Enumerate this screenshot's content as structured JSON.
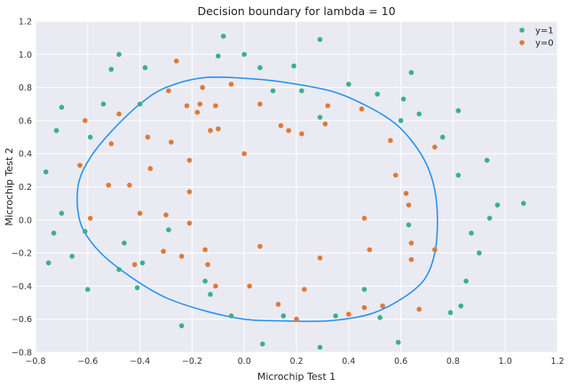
{
  "chart_data": {
    "type": "scatter",
    "title": "Decision boundary for lambda = 10",
    "xlabel": "Microchip Test 1",
    "ylabel": "Microchip Test 2",
    "xlim": [
      -0.8,
      1.2
    ],
    "ylim": [
      -0.8,
      1.2
    ],
    "xticks": [
      -0.8,
      -0.6,
      -0.4,
      -0.2,
      0.0,
      0.2,
      0.4,
      0.6,
      0.8,
      1.0,
      1.2
    ],
    "yticks": [
      -0.8,
      -0.6,
      -0.4,
      -0.2,
      0.0,
      0.2,
      0.4,
      0.6,
      0.8,
      1.0,
      1.2
    ],
    "xtick_labels": [
      "−0.8",
      "−0.6",
      "−0.4",
      "−0.2",
      "0.0",
      "0.2",
      "0.4",
      "0.6",
      "0.8",
      "1.0",
      "1.2"
    ],
    "ytick_labels": [
      "−0.8",
      "−0.6",
      "−0.4",
      "−0.2",
      "0.0",
      "0.2",
      "0.4",
      "0.6",
      "0.8",
      "1.0",
      "1.2"
    ],
    "grid": true,
    "legend_position": "top-right",
    "background_color": "#EAEAF2",
    "boundary_color": "#1E90F0",
    "series": [
      {
        "name": "y=1",
        "color": "#3BAF8E",
        "points": [
          [
            -0.76,
            0.29
          ],
          [
            -0.75,
            -0.26
          ],
          [
            -0.73,
            -0.08
          ],
          [
            -0.72,
            0.54
          ],
          [
            -0.7,
            0.68
          ],
          [
            -0.7,
            0.04
          ],
          [
            -0.66,
            -0.22
          ],
          [
            -0.61,
            -0.07
          ],
          [
            -0.6,
            -0.42
          ],
          [
            -0.59,
            0.5
          ],
          [
            -0.54,
            0.7
          ],
          [
            -0.51,
            0.91
          ],
          [
            -0.48,
            1.0
          ],
          [
            -0.48,
            -0.3
          ],
          [
            -0.46,
            -0.14
          ],
          [
            -0.41,
            -0.41
          ],
          [
            -0.4,
            0.7
          ],
          [
            -0.39,
            -0.26
          ],
          [
            -0.38,
            0.92
          ],
          [
            -0.29,
            -0.06
          ],
          [
            -0.24,
            -0.64
          ],
          [
            -0.15,
            -0.37
          ],
          [
            -0.13,
            -0.45
          ],
          [
            -0.1,
            0.99
          ],
          [
            -0.08,
            1.11
          ],
          [
            -0.05,
            -0.58
          ],
          [
            0.0,
            1.0
          ],
          [
            0.06,
            0.92
          ],
          [
            0.07,
            -0.75
          ],
          [
            0.11,
            0.78
          ],
          [
            0.15,
            -0.58
          ],
          [
            0.19,
            0.93
          ],
          [
            0.22,
            0.78
          ],
          [
            0.29,
            1.09
          ],
          [
            0.29,
            0.62
          ],
          [
            0.29,
            -0.77
          ],
          [
            0.35,
            -0.58
          ],
          [
            0.4,
            0.82
          ],
          [
            0.46,
            -0.42
          ],
          [
            0.51,
            0.76
          ],
          [
            0.52,
            -0.59
          ],
          [
            0.59,
            -0.74
          ],
          [
            0.6,
            0.6
          ],
          [
            0.61,
            0.73
          ],
          [
            0.63,
            -0.03
          ],
          [
            0.64,
            0.89
          ],
          [
            0.67,
            0.64
          ],
          [
            0.76,
            0.5
          ],
          [
            0.79,
            -0.56
          ],
          [
            0.82,
            0.66
          ],
          [
            0.82,
            0.27
          ],
          [
            0.83,
            -0.52
          ],
          [
            0.85,
            -0.37
          ],
          [
            0.87,
            -0.08
          ],
          [
            0.9,
            -0.2
          ],
          [
            0.93,
            0.36
          ],
          [
            0.94,
            0.01
          ],
          [
            0.97,
            0.09
          ],
          [
            1.07,
            0.1
          ]
        ]
      },
      {
        "name": "y=0",
        "color": "#DD7A36",
        "points": [
          [
            -0.63,
            0.33
          ],
          [
            -0.61,
            0.6
          ],
          [
            -0.59,
            0.01
          ],
          [
            -0.52,
            0.21
          ],
          [
            -0.51,
            0.46
          ],
          [
            -0.48,
            0.64
          ],
          [
            -0.44,
            0.21
          ],
          [
            -0.42,
            -0.27
          ],
          [
            -0.4,
            0.04
          ],
          [
            -0.37,
            0.5
          ],
          [
            -0.36,
            0.31
          ],
          [
            -0.31,
            -0.19
          ],
          [
            -0.3,
            0.03
          ],
          [
            -0.29,
            0.78
          ],
          [
            -0.28,
            0.47
          ],
          [
            -0.26,
            0.96
          ],
          [
            -0.24,
            -0.22
          ],
          [
            -0.22,
            0.69
          ],
          [
            -0.21,
            -0.02
          ],
          [
            -0.21,
            0.36
          ],
          [
            -0.21,
            0.17
          ],
          [
            -0.18,
            0.65
          ],
          [
            -0.17,
            0.7
          ],
          [
            -0.16,
            0.8
          ],
          [
            -0.15,
            -0.18
          ],
          [
            -0.14,
            -0.27
          ],
          [
            -0.13,
            0.54
          ],
          [
            -0.11,
            0.69
          ],
          [
            -0.1,
            0.55
          ],
          [
            -0.11,
            -0.4
          ],
          [
            -0.05,
            0.82
          ],
          [
            0.0,
            0.4
          ],
          [
            0.02,
            -0.4
          ],
          [
            0.06,
            0.7
          ],
          [
            0.06,
            -0.16
          ],
          [
            0.13,
            -0.51
          ],
          [
            0.14,
            0.57
          ],
          [
            0.17,
            0.54
          ],
          [
            0.2,
            -0.6
          ],
          [
            0.22,
            0.52
          ],
          [
            0.23,
            -0.42
          ],
          [
            0.29,
            -0.23
          ],
          [
            0.31,
            0.58
          ],
          [
            0.32,
            0.69
          ],
          [
            0.4,
            -0.57
          ],
          [
            0.45,
            0.67
          ],
          [
            0.46,
            -0.53
          ],
          [
            0.46,
            0.01
          ],
          [
            0.48,
            -0.18
          ],
          [
            0.53,
            -0.52
          ],
          [
            0.56,
            0.48
          ],
          [
            0.58,
            0.27
          ],
          [
            0.62,
            0.16
          ],
          [
            0.63,
            0.09
          ],
          [
            0.64,
            -0.14
          ],
          [
            0.64,
            -0.24
          ],
          [
            0.67,
            -0.54
          ],
          [
            0.73,
            0.44
          ],
          [
            0.73,
            -0.18
          ]
        ]
      }
    ],
    "decision_boundary": [
      [
        -0.15,
        0.86
      ],
      [
        0.05,
        0.85
      ],
      [
        0.2,
        0.82
      ],
      [
        0.35,
        0.77
      ],
      [
        0.48,
        0.68
      ],
      [
        0.58,
        0.58
      ],
      [
        0.65,
        0.46
      ],
      [
        0.7,
        0.33
      ],
      [
        0.73,
        0.18
      ],
      [
        0.74,
        0.0
      ],
      [
        0.73,
        -0.2
      ],
      [
        0.69,
        -0.36
      ],
      [
        0.6,
        -0.48
      ],
      [
        0.48,
        -0.57
      ],
      [
        0.32,
        -0.61
      ],
      [
        0.15,
        -0.61
      ],
      [
        0.0,
        -0.6
      ],
      [
        -0.15,
        -0.55
      ],
      [
        -0.3,
        -0.47
      ],
      [
        -0.43,
        -0.35
      ],
      [
        -0.55,
        -0.2
      ],
      [
        -0.62,
        -0.05
      ],
      [
        -0.64,
        0.1
      ],
      [
        -0.63,
        0.25
      ],
      [
        -0.58,
        0.4
      ],
      [
        -0.5,
        0.55
      ],
      [
        -0.4,
        0.7
      ],
      [
        -0.3,
        0.8
      ],
      [
        -0.15,
        0.86
      ]
    ]
  }
}
